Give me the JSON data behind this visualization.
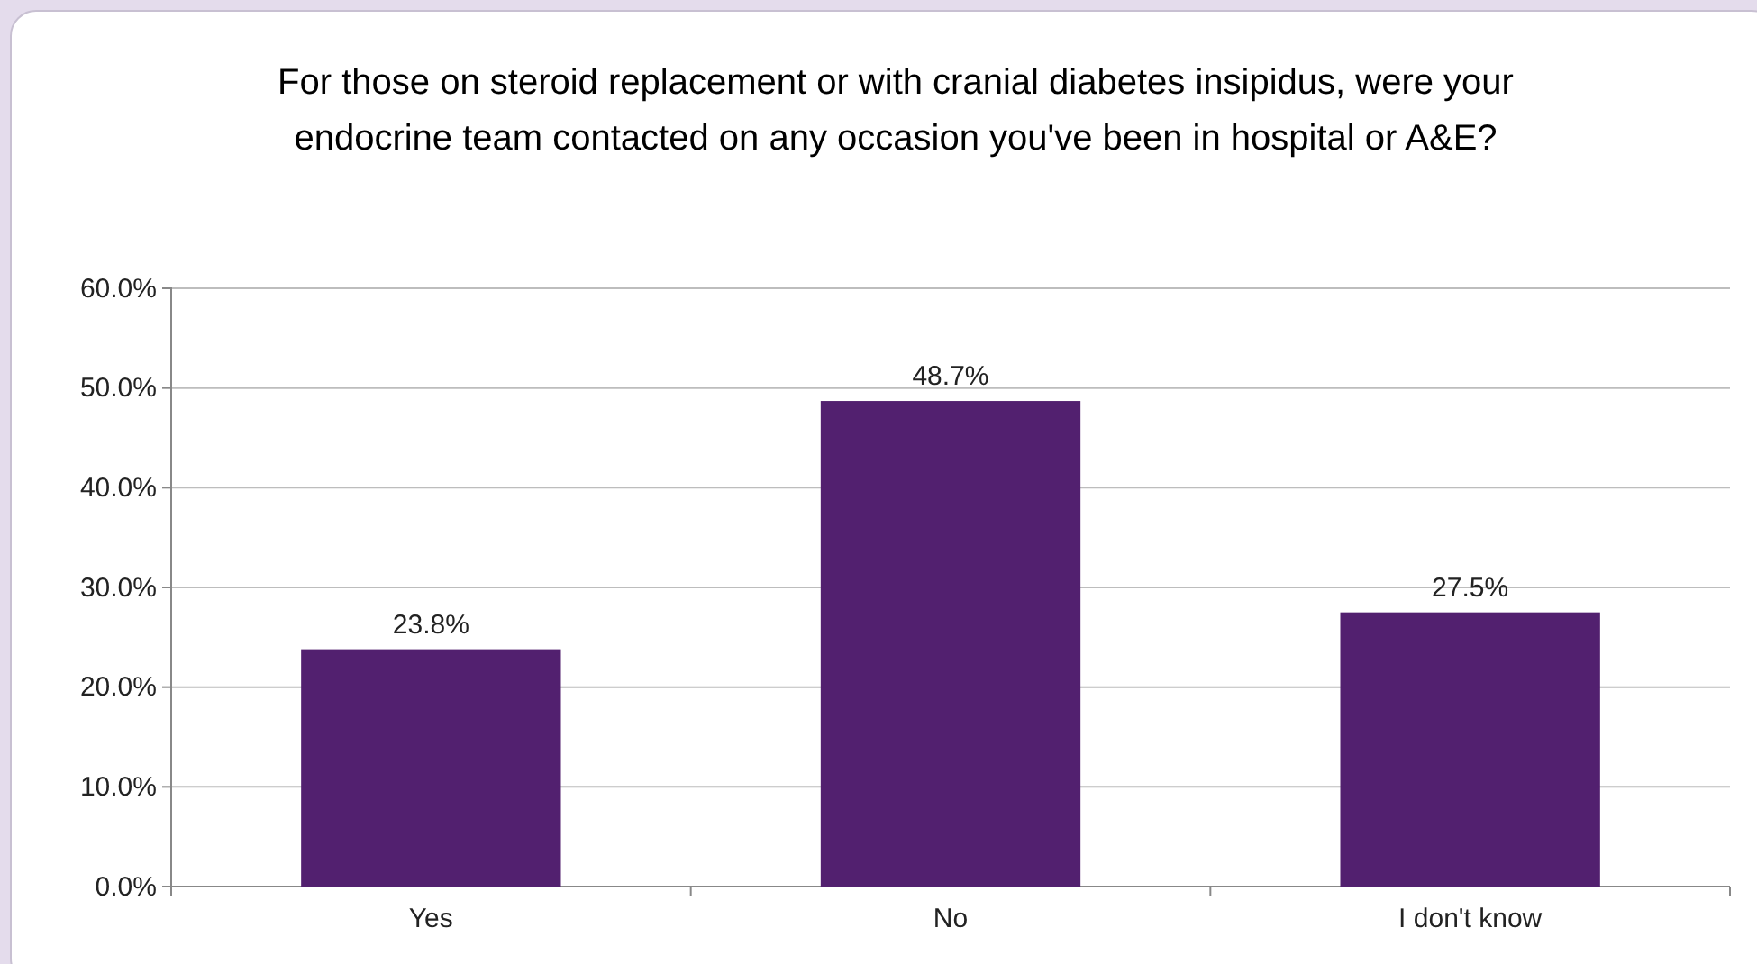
{
  "chart_data": {
    "type": "bar",
    "title": "For those on steroid replacement or with cranial diabetes insipidus, were your endocrine team contacted on any occasion you've been in hospital or A&E?",
    "categories": [
      "Yes",
      "No",
      "I don't know"
    ],
    "values": [
      23.8,
      48.7,
      27.5
    ],
    "value_labels": [
      "23.8%",
      "48.7%",
      "27.5%"
    ],
    "color": "#52206f",
    "ylim": [
      0,
      60
    ],
    "yticks": [
      {
        "value": 0,
        "label": "0.0%"
      },
      {
        "value": 10,
        "label": "10.0%"
      },
      {
        "value": 20,
        "label": "20.0%"
      },
      {
        "value": 30,
        "label": "30.0%"
      },
      {
        "value": 40,
        "label": "40.0%"
      },
      {
        "value": 50,
        "label": "50.0%"
      },
      {
        "value": 60,
        "label": "60.0%"
      }
    ],
    "grid": "y"
  }
}
